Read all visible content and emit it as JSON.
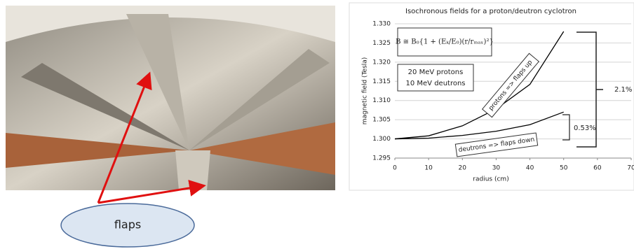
{
  "callout": "flaps",
  "chart_data": {
    "type": "line",
    "title": "Isochronous fields for a proton/deutron cyclotron",
    "x_label": "radius (cm)",
    "y_label": "magnetic field (Tesla)",
    "x": [
      0,
      10,
      20,
      30,
      40,
      50
    ],
    "series": [
      {
        "name": "protons",
        "color": "#000000",
        "values": [
          1.3,
          1.3008,
          1.3034,
          1.3078,
          1.3142,
          1.328
        ]
      },
      {
        "name": "deutrons",
        "color": "#000000",
        "values": [
          1.3,
          1.3002,
          1.3009,
          1.302,
          1.3037,
          1.307
        ]
      }
    ],
    "xlim": [
      0,
      70
    ],
    "xticks": [
      0,
      10,
      20,
      30,
      40,
      50,
      60,
      70
    ],
    "ylim": [
      1.295,
      1.33
    ],
    "yticks": [
      1.295,
      {
        "value": 1.3,
        "label": "1.300"
      },
      1.305,
      {
        "value": 1.31,
        "label": "1.310"
      },
      1.315,
      {
        "value": 1.32,
        "label": "1.320"
      },
      1.325,
      {
        "value": 1.33,
        "label": "1.330"
      }
    ],
    "grid": true,
    "formula": "B ≅ B₀{1 + (Eₖ/E₀)(r/rₘₐₓ)²}",
    "annotations": [
      "20 MeV protons",
      "10 MeV deutrons",
      "protons => flaps up",
      "deutrons => flaps down",
      "2.1%",
      "0.53%"
    ]
  }
}
